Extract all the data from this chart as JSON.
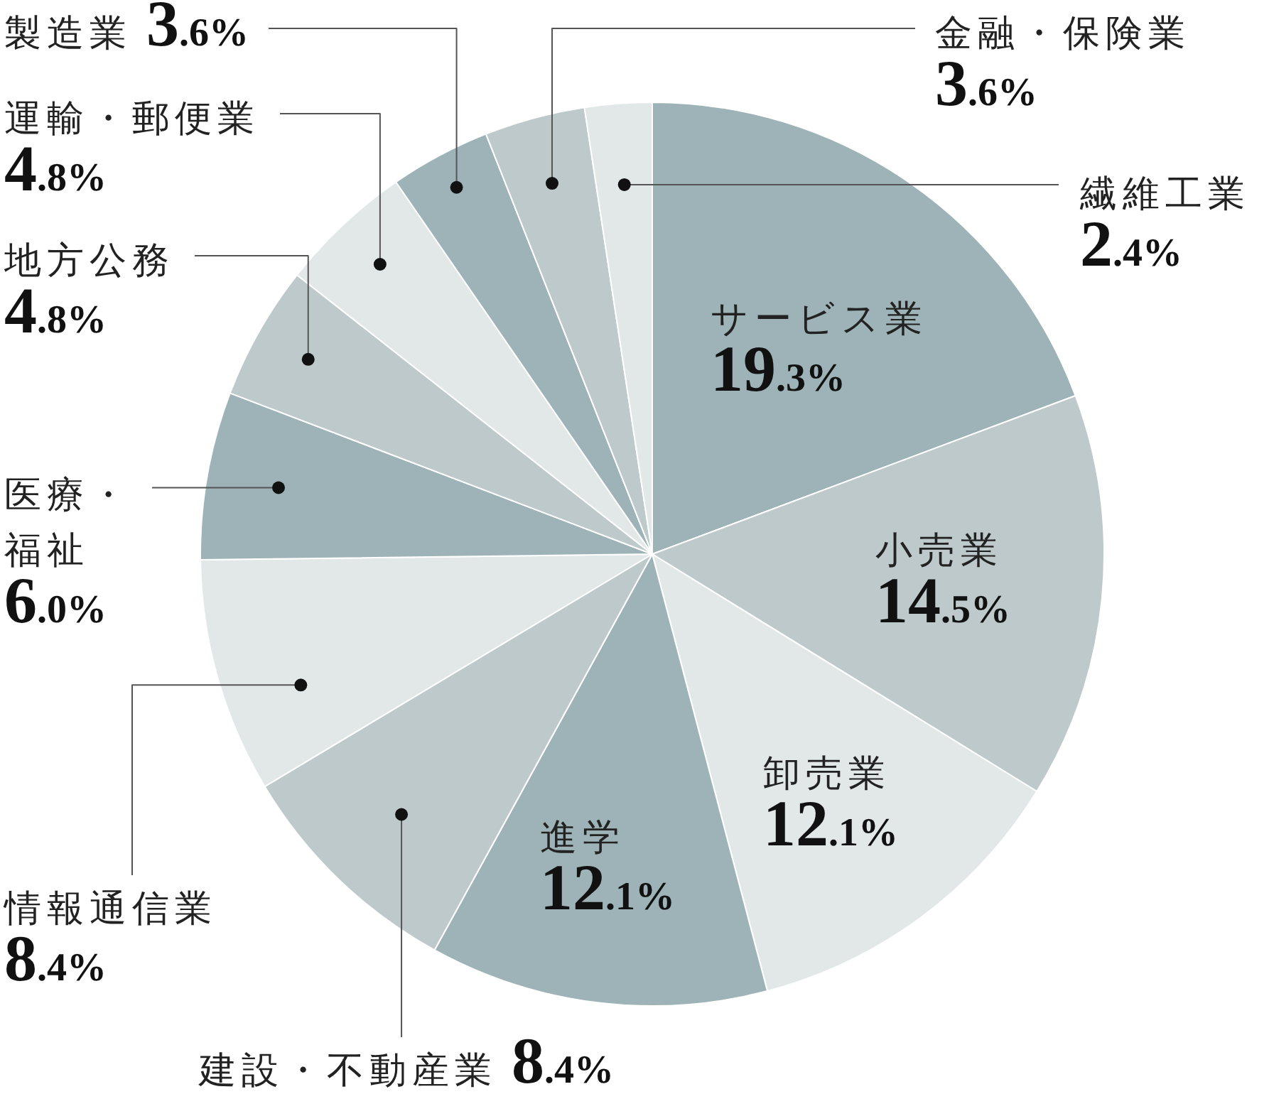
{
  "chart_data": {
    "type": "pie",
    "categories": [
      "サービス業",
      "小売業",
      "卸売業",
      "進学",
      "建設・不動産業",
      "情報通信業",
      "医療・福祉",
      "地方公務",
      "運輸・郵便業",
      "製造業",
      "金融・保険業",
      "繊維工業"
    ],
    "values": [
      19.3,
      14.5,
      12.1,
      12.1,
      8.4,
      8.4,
      6.0,
      4.8,
      4.8,
      3.6,
      3.6,
      2.4
    ],
    "value_labels": [
      "19.3%",
      "14.5%",
      "12.1%",
      "12.1%",
      "8.4%",
      "8.4%",
      "6.0%",
      "4.8%",
      "4.8%",
      "3.6%",
      "3.6%",
      "2.4%"
    ],
    "colors": [
      "#9eb3b7",
      "#bec9cb",
      "#e2e7e8",
      "#9eb3b7",
      "#bec9cb",
      "#e2e7e8",
      "#9eb3b7",
      "#bec9cb",
      "#e2e7e8",
      "#9eb3b7",
      "#bec9cb",
      "#e2e7e8"
    ]
  }
}
